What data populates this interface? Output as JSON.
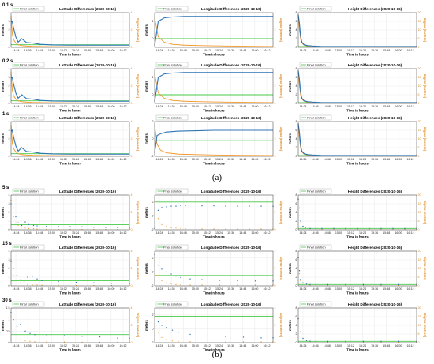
{
  "colors": {
    "solution": "#2e74b5",
    "final": "#45c845",
    "sigma": "#f29624",
    "grid": "#e3e3e3"
  },
  "captions": {
    "a": "(a)",
    "b": "(b)"
  },
  "rows": [
    {
      "label": "0.1 s",
      "group": "a",
      "style": "line"
    },
    {
      "label": "0.2 s",
      "group": "a",
      "style": "line"
    },
    {
      "label": "1 s",
      "group": "a",
      "style": "line"
    },
    {
      "label": "5 s",
      "group": "b",
      "style": "dots"
    },
    {
      "label": "15 s",
      "group": "b",
      "style": "dots"
    },
    {
      "label": "30 s",
      "group": "b",
      "style": "dots"
    }
  ],
  "common": {
    "legend": "Final solution",
    "xlabel": "Time in hours",
    "ylabel": "meters",
    "ylabel_right": "Sigma (meters)",
    "xticks": [
      "14:24",
      "14:36",
      "14:48",
      "15:00",
      "15:12",
      "15:24",
      "15:36",
      "15:48",
      "16:00",
      "16:12"
    ]
  },
  "chart_data": [
    {
      "type": "line",
      "row": "0.1 s",
      "title": "Latitude Differences (2020-10-16)",
      "ylim": [
        0,
        4
      ],
      "yticks": [
        0,
        1,
        2,
        3,
        4
      ],
      "right_ylim": [
        0,
        4
      ],
      "right_yticks": [
        0,
        2,
        4
      ],
      "final": 0.3,
      "x": [
        0,
        0.01,
        0.02,
        0.04,
        0.06,
        0.09,
        0.13,
        0.18,
        0.25,
        0.35,
        0.5,
        0.7,
        1.0
      ],
      "y": [
        2.9,
        3.0,
        2.3,
        1.2,
        0.6,
        1.0,
        0.55,
        0.5,
        0.35,
        0.28,
        0.25,
        0.25,
        0.25
      ],
      "sigma": [
        3.6,
        1.6,
        0.9,
        0.5,
        0.3,
        0.2,
        0.15,
        0.12,
        0.1,
        0.08,
        0.07,
        0.06,
        0.05
      ]
    },
    {
      "type": "line",
      "row": "0.1 s",
      "title": "Longitude Differences (2020-10-16)",
      "ylim": [
        -0.5,
        1.5
      ],
      "yticks": [
        0,
        1
      ],
      "right_ylim": [
        0,
        4
      ],
      "right_yticks": [
        0,
        2,
        4
      ],
      "final": 0.0,
      "x": [
        0,
        0.03,
        0.08,
        0.15,
        0.25,
        0.4,
        0.6,
        0.8,
        1.0
      ],
      "y": [
        -0.4,
        1.0,
        1.2,
        1.25,
        1.28,
        1.28,
        1.28,
        1.28,
        1.28
      ],
      "sigma": [
        3.4,
        1.2,
        0.6,
        0.35,
        0.25,
        0.2,
        0.15,
        0.12,
        0.1
      ]
    },
    {
      "type": "line",
      "row": "0.1 s",
      "title": "Height Differences (2020-10-16)",
      "ylim": [
        0,
        8
      ],
      "yticks": [
        0,
        2,
        4,
        6,
        8
      ],
      "right_ylim": [
        0,
        20
      ],
      "right_yticks": [
        0,
        5,
        10,
        15,
        20
      ],
      "final": 0.2,
      "x": [
        0,
        0.01,
        0.02,
        0.03,
        0.05,
        0.08,
        0.12,
        0.2,
        0.4,
        0.7,
        1.0
      ],
      "y": [
        7.5,
        5.5,
        2.5,
        1.2,
        0.6,
        0.4,
        0.3,
        0.2,
        0.2,
        0.2,
        0.2
      ],
      "sigma": [
        19,
        10,
        5,
        2.5,
        1.2,
        0.8,
        0.5,
        0.3,
        0.2,
        0.15,
        0.1
      ]
    },
    {
      "type": "line",
      "row": "0.2 s",
      "title": "Latitude Differences (2020-10-16)",
      "ylim": [
        0,
        4
      ],
      "yticks": [
        0,
        1,
        2,
        3,
        4
      ],
      "right_ylim": [
        0,
        4
      ],
      "right_yticks": [
        0,
        2,
        4
      ],
      "final": 0.3,
      "x": [
        0,
        0.01,
        0.02,
        0.04,
        0.06,
        0.09,
        0.13,
        0.18,
        0.25,
        0.35,
        0.5,
        0.7,
        1.0
      ],
      "y": [
        2.9,
        3.0,
        2.3,
        1.2,
        0.6,
        1.0,
        0.55,
        0.5,
        0.35,
        0.28,
        0.25,
        0.25,
        0.25
      ],
      "sigma": [
        3.6,
        1.6,
        0.9,
        0.5,
        0.3,
        0.2,
        0.15,
        0.12,
        0.1,
        0.08,
        0.07,
        0.06,
        0.05
      ]
    },
    {
      "type": "line",
      "row": "0.2 s",
      "title": "Longitude Differences (2020-10-16)",
      "ylim": [
        -0.5,
        1.5
      ],
      "yticks": [
        0,
        1
      ],
      "right_ylim": [
        0,
        4
      ],
      "right_yticks": [
        0,
        2,
        4
      ],
      "final": 0.0,
      "x": [
        0,
        0.03,
        0.08,
        0.15,
        0.25,
        0.4,
        0.6,
        0.8,
        1.0
      ],
      "y": [
        -0.4,
        1.0,
        1.2,
        1.25,
        1.28,
        1.28,
        1.28,
        1.28,
        1.28
      ],
      "sigma": [
        3.4,
        1.2,
        0.6,
        0.35,
        0.25,
        0.2,
        0.15,
        0.12,
        0.1
      ]
    },
    {
      "type": "line",
      "row": "0.2 s",
      "title": "Height Differences (2020-10-16)",
      "ylim": [
        0,
        8
      ],
      "yticks": [
        0,
        2,
        4,
        6,
        8
      ],
      "right_ylim": [
        0,
        20
      ],
      "right_yticks": [
        0,
        5,
        10,
        15,
        20
      ],
      "final": 0.2,
      "x": [
        0,
        0.01,
        0.02,
        0.03,
        0.05,
        0.08,
        0.12,
        0.2,
        0.4,
        0.7,
        1.0
      ],
      "y": [
        7.5,
        5.5,
        2.5,
        1.2,
        0.6,
        0.4,
        0.3,
        0.2,
        0.2,
        0.2,
        0.2
      ],
      "sigma": [
        19,
        10,
        5,
        2.5,
        1.2,
        0.8,
        0.5,
        0.3,
        0.2,
        0.15,
        0.1
      ]
    },
    {
      "type": "line",
      "row": "1 s",
      "title": "Latitude Differences (2020-10-16)",
      "ylim": [
        0,
        4
      ],
      "yticks": [
        0,
        1,
        2,
        3,
        4
      ],
      "right_ylim": [
        0,
        4
      ],
      "right_yticks": [
        0,
        2,
        4
      ],
      "final": 0.3,
      "x": [
        0,
        0.01,
        0.02,
        0.04,
        0.06,
        0.09,
        0.13,
        0.18,
        0.25,
        0.35,
        0.5,
        0.7,
        1.0
      ],
      "y": [
        2.9,
        3.0,
        2.3,
        1.2,
        0.6,
        1.0,
        0.55,
        0.5,
        0.35,
        0.28,
        0.25,
        0.25,
        0.25
      ],
      "sigma": [
        3.6,
        1.6,
        0.9,
        0.5,
        0.3,
        0.2,
        0.15,
        0.12,
        0.1,
        0.08,
        0.07,
        0.06,
        0.05
      ]
    },
    {
      "type": "line",
      "row": "1 s",
      "title": "Longitude Differences (2020-10-16)",
      "ylim": [
        -2,
        2
      ],
      "yticks": [
        -2,
        0,
        2
      ],
      "right_ylim": [
        0,
        4
      ],
      "right_yticks": [
        0,
        2,
        4
      ],
      "final": -0.2,
      "x": [
        0,
        0.02,
        0.05,
        0.1,
        0.2,
        0.35,
        0.5,
        0.7,
        1.0
      ],
      "y": [
        -1.6,
        0.4,
        0.6,
        0.8,
        0.9,
        0.95,
        1.0,
        1.0,
        1.0
      ],
      "sigma": [
        3.6,
        1.4,
        0.7,
        0.4,
        0.25,
        0.2,
        0.15,
        0.12,
        0.1
      ]
    },
    {
      "type": "line",
      "row": "1 s",
      "title": "Height Differences (2020-10-16)",
      "ylim": [
        0,
        8
      ],
      "yticks": [
        0,
        2,
        4,
        6,
        8
      ],
      "right_ylim": [
        0,
        20
      ],
      "right_yticks": [
        0,
        5,
        10,
        15,
        20
      ],
      "final": 0.2,
      "x": [
        0,
        0.01,
        0.02,
        0.03,
        0.05,
        0.08,
        0.12,
        0.2,
        0.4,
        0.7,
        1.0
      ],
      "y": [
        7.5,
        5.5,
        2.5,
        1.2,
        0.6,
        0.4,
        0.3,
        0.2,
        0.2,
        0.2,
        0.2
      ],
      "sigma": [
        19,
        10,
        5,
        2.5,
        1.2,
        0.8,
        0.5,
        0.3,
        0.2,
        0.15,
        0.1
      ]
    },
    {
      "type": "scatter",
      "row": "5 s",
      "title": "Latitude Differences (2020-10-16)",
      "ylim": [
        0,
        4
      ],
      "yticks": [
        0,
        1,
        2,
        3,
        4
      ],
      "right_ylim": [
        0,
        4
      ],
      "right_yticks": [
        0,
        2,
        4
      ],
      "final": 0.6,
      "x": [
        0,
        0.02,
        0.04,
        0.06,
        0.09,
        0.12,
        0.15,
        0.19,
        0.22,
        0.3,
        0.4,
        0.5,
        0.6,
        0.7,
        0.8,
        0.9,
        1.0
      ],
      "y": [
        3.0,
        2.5,
        1.5,
        0.8,
        0.5,
        0.9,
        0.6,
        0.5,
        0.45,
        0.4,
        0.38,
        0.36,
        0.35,
        0.3,
        0.28,
        0.25,
        0.2
      ],
      "sigma": [
        3.4,
        1.5,
        0.8,
        0.5,
        0.3,
        0.2,
        0.15,
        0.12,
        0.1,
        0.08,
        0.07,
        0.06,
        0.05,
        0.05,
        0.05,
        0.05,
        0.05
      ]
    },
    {
      "type": "scatter",
      "row": "5 s",
      "title": "Longitude Differences (2020-10-16)",
      "ylim": [
        -2,
        3
      ],
      "yticks": [
        -2,
        0,
        2
      ],
      "right_ylim": [
        0,
        4
      ],
      "right_yticks": [
        0,
        2,
        4
      ],
      "final": 2.0,
      "x": [
        0,
        0.03,
        0.06,
        0.1,
        0.14,
        0.18,
        0.22,
        0.26,
        0.4,
        0.5,
        0.6,
        0.7,
        0.8,
        0.9,
        1.0
      ],
      "y": [
        -1.8,
        0.8,
        1.2,
        1.3,
        1.4,
        1.4,
        1.5,
        1.5,
        1.45,
        1.45,
        1.4,
        1.4,
        1.4,
        1.4,
        1.4
      ],
      "sigma": [
        3.2,
        1.3,
        0.6,
        0.4,
        0.25,
        0.2,
        0.15,
        0.12,
        0.1,
        0.1,
        0.1,
        0.1,
        0.1,
        0.1,
        0.1
      ]
    },
    {
      "type": "scatter",
      "row": "5 s",
      "title": "Height Differences (2020-10-16)",
      "ylim": [
        0,
        8
      ],
      "yticks": [
        0,
        2,
        4,
        6,
        8
      ],
      "right_ylim": [
        0,
        20
      ],
      "right_yticks": [
        0,
        5,
        10,
        15,
        20
      ],
      "final": 0.3,
      "x": [
        0,
        0.01,
        0.02,
        0.04,
        0.06,
        0.1,
        0.15,
        0.2,
        0.3,
        0.4,
        0.5,
        0.6,
        0.7,
        0.8,
        0.9,
        1.0
      ],
      "y": [
        7.0,
        5.0,
        2.0,
        0.8,
        0.4,
        0.3,
        0.3,
        0.3,
        0.3,
        0.3,
        0.3,
        0.3,
        0.3,
        0.3,
        0.3,
        0.3
      ],
      "sigma": [
        18,
        8,
        4,
        2,
        1,
        0.6,
        0.4,
        0.3,
        0.2,
        0.2,
        0.2,
        0.2,
        0.2,
        0.2,
        0.2,
        0.2
      ]
    },
    {
      "type": "scatter",
      "row": "15 s",
      "title": "Latitude Differences (2020-10-16)",
      "ylim": [
        0,
        4
      ],
      "yticks": [
        0,
        1,
        2,
        3,
        4
      ],
      "right_ylim": [
        0,
        4
      ],
      "right_yticks": [
        0,
        2,
        4
      ],
      "final": 0.6,
      "x": [
        0,
        0.02,
        0.05,
        0.08,
        0.11,
        0.14,
        0.18,
        0.22,
        0.26,
        0.4,
        0.55,
        0.7,
        0.85,
        1.0
      ],
      "y": [
        2.8,
        2.0,
        1.2,
        0.7,
        0.5,
        1.0,
        1.1,
        0.8,
        0.6,
        0.5,
        0.4,
        0.35,
        0.3,
        0.25
      ],
      "sigma": [
        3.0,
        1.2,
        0.6,
        0.35,
        0.2,
        0.15,
        0.12,
        0.1,
        0.08,
        0.06,
        0.05,
        0.05,
        0.05,
        0.05
      ]
    },
    {
      "type": "scatter",
      "row": "15 s",
      "title": "Longitude Differences (2020-10-16)",
      "ylim": [
        -2,
        3
      ],
      "yticks": [
        -2,
        0,
        2
      ],
      "right_ylim": [
        0,
        4
      ],
      "right_yticks": [
        0,
        2,
        4
      ],
      "final": -0.5,
      "x": [
        0,
        0.03,
        0.06,
        0.1,
        0.14,
        0.18,
        0.22,
        0.3,
        0.4,
        0.55,
        0.7,
        0.85,
        1.0
      ],
      "y": [
        2.5,
        1.0,
        0.4,
        0.0,
        -0.3,
        -0.6,
        -0.8,
        -1.0,
        -1.1,
        -1.2,
        -1.25,
        -1.3,
        -1.3
      ],
      "sigma": [
        3.0,
        1.2,
        0.6,
        0.35,
        0.2,
        0.15,
        0.12,
        0.1,
        0.1,
        0.1,
        0.1,
        0.1,
        0.1
      ]
    },
    {
      "type": "scatter",
      "row": "15 s",
      "title": "Height Differences (2020-10-16)",
      "ylim": [
        0,
        8
      ],
      "yticks": [
        0,
        2,
        4,
        6,
        8
      ],
      "right_ylim": [
        0,
        20
      ],
      "right_yticks": [
        0,
        5,
        10,
        15,
        20
      ],
      "final": 0.3,
      "x": [
        0,
        0.01,
        0.02,
        0.04,
        0.07,
        0.1,
        0.15,
        0.25,
        0.4,
        0.55,
        0.7,
        0.85,
        1.0
      ],
      "y": [
        6.5,
        3.5,
        1.5,
        0.7,
        0.4,
        0.3,
        0.3,
        0.3,
        0.3,
        0.3,
        0.3,
        0.3,
        0.3
      ],
      "sigma": [
        16,
        7,
        3,
        1.5,
        0.8,
        0.5,
        0.3,
        0.2,
        0.2,
        0.2,
        0.2,
        0.2,
        0.2
      ]
    },
    {
      "type": "scatter",
      "row": "30 s",
      "title": "Latitude Differences (2020-10-16)",
      "ylim": [
        0,
        1.5
      ],
      "yticks": [
        0,
        0.5,
        1,
        1.5
      ],
      "right_ylim": [
        0,
        4
      ],
      "right_yticks": [
        0,
        2,
        4
      ],
      "final": 0.35,
      "x": [
        0,
        0.02,
        0.05,
        0.08,
        0.12,
        0.16,
        0.2,
        0.3,
        0.45,
        0.6,
        0.75,
        0.9,
        1.0
      ],
      "y": [
        1.3,
        1.0,
        0.7,
        0.8,
        0.5,
        0.4,
        0.35,
        0.3,
        0.3,
        0.28,
        0.25,
        0.2,
        0.2
      ],
      "sigma": [
        3.0,
        1.2,
        0.6,
        0.35,
        0.2,
        0.15,
        0.12,
        0.1,
        0.08,
        0.06,
        0.05,
        0.05,
        0.05
      ]
    },
    {
      "type": "scatter",
      "row": "30 s",
      "title": "Longitude Differences (2020-10-16)",
      "ylim": [
        -2,
        3
      ],
      "yticks": [
        -2,
        0,
        2
      ],
      "right_ylim": [
        0,
        4
      ],
      "right_yticks": [
        0,
        2,
        4
      ],
      "final": 1.8,
      "x": [
        0,
        0.03,
        0.06,
        0.1,
        0.15,
        0.2,
        0.3,
        0.45,
        0.6,
        0.75,
        0.9,
        1.0
      ],
      "y": [
        2.2,
        1.0,
        0.5,
        0.2,
        -0.2,
        -0.5,
        -0.8,
        -1.0,
        -1.1,
        -1.2,
        -1.3,
        -1.3
      ],
      "sigma": [
        3.0,
        1.2,
        0.6,
        0.35,
        0.2,
        0.15,
        0.12,
        0.1,
        0.1,
        0.1,
        0.1,
        0.1
      ]
    },
    {
      "type": "scatter",
      "row": "30 s",
      "title": "Height Differences (2020-10-16)",
      "ylim": [
        0,
        8
      ],
      "yticks": [
        0,
        2,
        4,
        6,
        8
      ],
      "right_ylim": [
        0,
        20
      ],
      "right_yticks": [
        0,
        5,
        10,
        15,
        20
      ],
      "final": 0.3,
      "x": [
        0,
        0.02,
        0.04,
        0.07,
        0.1,
        0.15,
        0.25,
        0.4,
        0.55,
        0.7,
        0.85,
        1.0
      ],
      "y": [
        5.5,
        2.5,
        1.0,
        0.5,
        0.35,
        0.3,
        0.3,
        0.3,
        0.3,
        0.3,
        0.3,
        0.3
      ],
      "sigma": [
        14,
        6,
        2.5,
        1.2,
        0.6,
        0.4,
        0.3,
        0.2,
        0.2,
        0.2,
        0.2,
        0.2
      ]
    }
  ]
}
